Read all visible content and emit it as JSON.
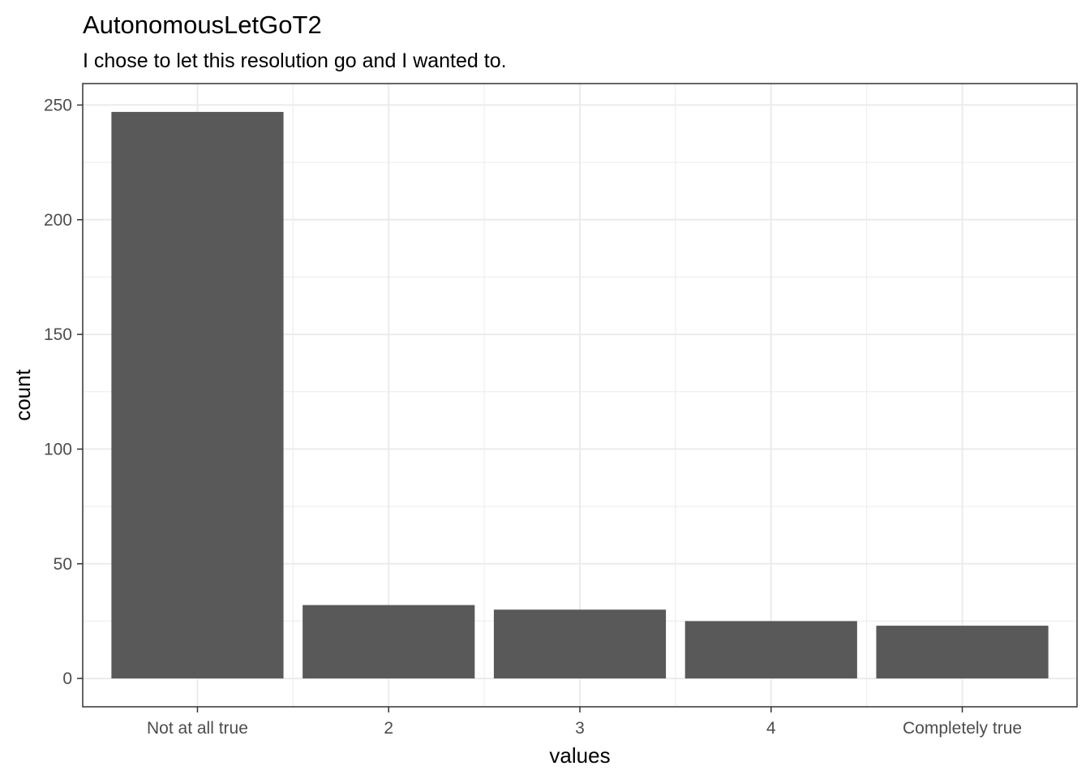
{
  "chart_data": {
    "type": "bar",
    "title": "AutonomousLetGoT2",
    "subtitle": "I chose to let this resolution go and I wanted to.",
    "xlabel": "values",
    "ylabel": "count",
    "categories": [
      "Not at all true",
      "2",
      "3",
      "4",
      "Completely true"
    ],
    "values": [
      247,
      32,
      30,
      25,
      23
    ],
    "ylim": [
      -12.35,
      259.35
    ],
    "yticks": [
      0,
      50,
      100,
      150,
      200,
      250
    ],
    "grid": true,
    "bar_color": "#595959",
    "grid_color": "#ebebeb",
    "panel_border_color": "#333333"
  }
}
